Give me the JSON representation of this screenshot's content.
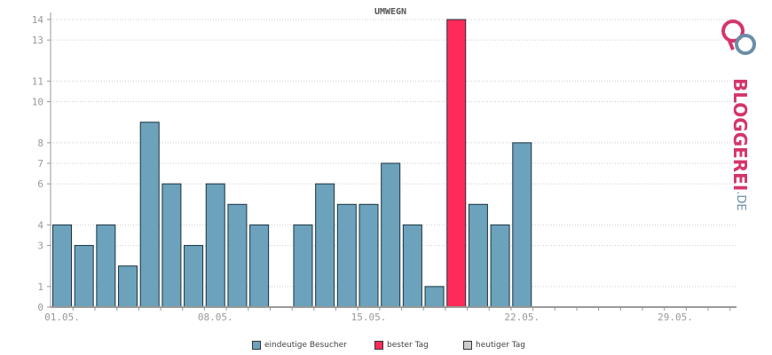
{
  "chart_data": {
    "type": "bar",
    "title": "UMWEGN",
    "categories": [
      "01.05.",
      "02.05.",
      "03.05.",
      "04.05.",
      "05.05.",
      "06.05.",
      "07.05.",
      "08.05.",
      "09.05.",
      "10.05.",
      "11.05.",
      "12.05.",
      "13.05.",
      "14.05.",
      "15.05.",
      "16.05.",
      "17.05.",
      "18.05.",
      "19.05.",
      "20.05.",
      "21.05.",
      "22.05.",
      "23.05.",
      "24.05.",
      "25.05.",
      "26.05.",
      "27.05.",
      "28.05.",
      "29.05.",
      "30.05.",
      "31.05."
    ],
    "values": [
      4,
      3,
      4,
      2,
      9,
      6,
      3,
      6,
      5,
      4,
      0,
      4,
      6,
      5,
      5,
      7,
      4,
      1,
      14,
      5,
      4,
      8,
      0,
      0,
      0,
      0,
      0,
      0,
      0,
      0,
      0
    ],
    "best_day_index": 18,
    "x_tick_labels": [
      "01.05.",
      "08.05.",
      "15.05.",
      "22.05.",
      "29.05."
    ],
    "y_tick_labels": [
      "0",
      "1",
      "3",
      "4",
      "6",
      "7",
      "8",
      "10",
      "11",
      "13",
      "14"
    ],
    "ylim": [
      0,
      14
    ],
    "grid": true,
    "legend_placement": "bottom"
  },
  "legend": [
    {
      "label": "eindeutige Besucher",
      "color": "#6ca2bb"
    },
    {
      "label": "bester Tag",
      "color": "#ff2a5a"
    },
    {
      "label": "heutiger Tag",
      "color": "#cccccc"
    }
  ],
  "colors": {
    "bar": "#6ca2bb",
    "best": "#ff2a5a",
    "bar_border": "#1a3340",
    "axis": "#999999",
    "grid": "#cccccc"
  },
  "logo": {
    "main": "BLOGGEREI",
    "sub": ".DE",
    "icon": "bloggerei-logo-icon"
  }
}
